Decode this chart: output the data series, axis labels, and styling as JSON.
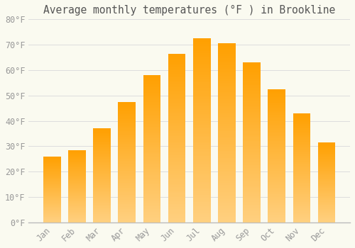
{
  "title": "Average monthly temperatures (°F ) in Brookline",
  "months": [
    "Jan",
    "Feb",
    "Mar",
    "Apr",
    "May",
    "Jun",
    "Jul",
    "Aug",
    "Sep",
    "Oct",
    "Nov",
    "Dec"
  ],
  "values": [
    26.0,
    28.5,
    37.0,
    47.5,
    58.0,
    66.5,
    72.5,
    70.5,
    63.0,
    52.5,
    43.0,
    31.5
  ],
  "bar_color": "#FFA500",
  "bar_color_light": "#FFD080",
  "background_color": "#FAFAF0",
  "grid_color": "#DDDDDD",
  "text_color": "#999999",
  "title_color": "#555555",
  "ylim": [
    0,
    80
  ],
  "yticks": [
    0,
    10,
    20,
    30,
    40,
    50,
    60,
    70,
    80
  ],
  "ytick_labels": [
    "0°F",
    "10°F",
    "20°F",
    "30°F",
    "40°F",
    "50°F",
    "60°F",
    "70°F",
    "80°F"
  ],
  "title_fontsize": 10.5,
  "tick_fontsize": 8.5,
  "bar_width": 0.7
}
